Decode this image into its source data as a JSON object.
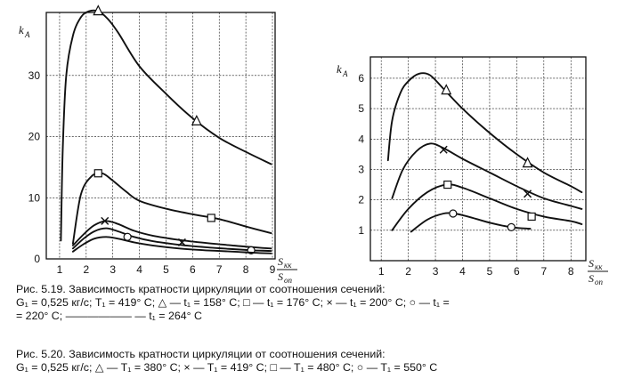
{
  "chart_data": [
    {
      "type": "line",
      "title": "",
      "ylabel": "k_A",
      "xlabel": "S_кк / S_оп",
      "xlim": [
        0.5,
        9.1
      ],
      "ylim": [
        0,
        40.3
      ],
      "xticks": [
        1,
        2,
        3,
        4,
        5,
        6,
        7,
        8,
        9
      ],
      "yticks": [
        0,
        10,
        20,
        30
      ],
      "series": [
        {
          "marker": "triangle",
          "x": [
            1.05,
            1.12,
            1.25,
            1.5,
            1.8,
            2.1,
            2.45,
            2.8,
            3.2,
            4.0,
            5.0,
            6.0,
            7.0,
            8.0,
            8.95
          ],
          "y": [
            3,
            18,
            30,
            36.5,
            39.5,
            40.5,
            40.5,
            39.3,
            37,
            31.5,
            27,
            23,
            19.8,
            17.5,
            15.5
          ],
          "markers": [
            [
              2.45,
              40.5
            ],
            [
              6.15,
              22.5
            ]
          ]
        },
        {
          "marker": "square",
          "x": [
            1.5,
            1.8,
            2.2,
            2.6,
            3.0,
            3.5,
            4.0,
            5.0,
            6.0,
            7.0,
            8.0,
            8.95
          ],
          "y": [
            2.5,
            10.5,
            13.5,
            14,
            12.8,
            11,
            9.5,
            8.2,
            7.3,
            6.5,
            5.3,
            4.2
          ],
          "markers": [
            [
              2.45,
              14
            ],
            [
              6.7,
              6.7
            ]
          ]
        },
        {
          "marker": "cross",
          "x": [
            1.5,
            1.9,
            2.3,
            2.75,
            3.2,
            3.8,
            4.5,
            5.5,
            6.5,
            7.5,
            8.3,
            8.95
          ],
          "y": [
            2.2,
            4,
            5.5,
            6.2,
            5.7,
            4.6,
            3.8,
            3.1,
            2.6,
            2.2,
            1.9,
            1.7
          ],
          "markers": [
            [
              2.7,
              6.2
            ],
            [
              5.6,
              2.7
            ]
          ]
        },
        {
          "marker": "circle",
          "x": [
            1.5,
            1.9,
            2.3,
            2.75,
            3.2,
            3.8,
            4.5,
            5.5,
            6.5,
            7.5,
            8.3,
            8.95
          ],
          "y": [
            1.7,
            3.3,
            4.5,
            5,
            4.5,
            3.6,
            2.9,
            2.3,
            1.9,
            1.6,
            1.4,
            1.3
          ],
          "markers": [
            [
              3.55,
              3.6
            ],
            [
              8.2,
              1.4
            ]
          ]
        },
        {
          "marker": "none",
          "x": [
            1.5,
            1.9,
            2.3,
            2.75,
            3.2,
            3.8,
            4.5,
            5.5,
            6.5,
            7.5,
            8.3,
            8.95
          ],
          "y": [
            1.2,
            2.4,
            3.3,
            3.6,
            3.3,
            2.7,
            2.2,
            1.7,
            1.4,
            1.2,
            1,
            0.9
          ],
          "markers": []
        }
      ]
    },
    {
      "type": "line",
      "title": "",
      "ylabel": "k_A",
      "xlabel": "S_кк / S_оп",
      "xlim": [
        0.6,
        8.55
      ],
      "ylim": [
        0,
        6.7
      ],
      "xticks": [
        1,
        2,
        3,
        4,
        5,
        6,
        7,
        8
      ],
      "yticks": [
        1,
        2,
        3,
        4,
        5,
        6
      ],
      "series": [
        {
          "marker": "triangle",
          "x": [
            1.25,
            1.4,
            1.7,
            2.0,
            2.4,
            2.8,
            3.3,
            4.0,
            5.0,
            6.0,
            7.0,
            8.0,
            8.4
          ],
          "y": [
            3.3,
            4.6,
            5.5,
            5.9,
            6.15,
            6.1,
            5.65,
            5.0,
            4.2,
            3.5,
            2.9,
            2.45,
            2.25
          ],
          "markers": [
            [
              3.4,
              5.6
            ],
            [
              6.4,
              3.2
            ]
          ]
        },
        {
          "marker": "cross",
          "x": [
            1.4,
            1.8,
            2.3,
            2.8,
            3.3,
            4.0,
            5.0,
            6.0,
            7.0,
            8.0,
            8.4
          ],
          "y": [
            2.05,
            3.0,
            3.6,
            3.85,
            3.7,
            3.35,
            2.9,
            2.45,
            2.05,
            1.8,
            1.7
          ],
          "markers": [
            [
              3.3,
              3.65
            ],
            [
              6.4,
              2.2
            ]
          ]
        },
        {
          "marker": "square",
          "x": [
            1.4,
            2.0,
            2.7,
            3.4,
            4.0,
            5.0,
            6.0,
            7.0,
            8.0,
            8.4
          ],
          "y": [
            1.0,
            1.7,
            2.25,
            2.5,
            2.4,
            2.05,
            1.7,
            1.45,
            1.3,
            1.2
          ],
          "markers": [
            [
              3.45,
              2.5
            ],
            [
              6.55,
              1.45
            ]
          ]
        },
        {
          "marker": "circle",
          "x": [
            2.1,
            2.7,
            3.3,
            3.7,
            4.2,
            5.0,
            5.8,
            6.5
          ],
          "y": [
            0.95,
            1.35,
            1.55,
            1.55,
            1.45,
            1.25,
            1.1,
            1.05
          ],
          "markers": [
            [
              3.65,
              1.55
            ],
            [
              5.8,
              1.1
            ]
          ]
        }
      ]
    }
  ],
  "figure_left": {
    "ylabel": "k",
    "ylabel_sub": "A",
    "xlabel_num": "S",
    "xlabel_num_sub": "кк",
    "xlabel_den": "S",
    "xlabel_den_sub": "оп"
  },
  "figure_right": {
    "ylabel": "k",
    "ylabel_sub": "A",
    "xlabel_num": "S",
    "xlabel_num_sub": "кк",
    "xlabel_den": "S",
    "xlabel_den_sub": "оп"
  },
  "captions": {
    "fig519_line1": "Рис. 5.19. Зависимость кратности циркуляции от соотношения сечений:",
    "fig519_line2": "G₁ = 0,525 кг/с; T₁ = 419° C; △ — t₁ = 158° C; □ — t₁ = 176° C; × — t₁ = 200° C; ○ — t₁ =",
    "fig519_line3": "= 220° C; —————— — t₁ = 264° C",
    "fig520_line1": "Рис. 5.20. Зависимость кратности циркуляции от соотношения сечений:",
    "fig520_line2": "G₁ = 0,525 кг/с; △ — T₁ = 380° C; × — T₁ = 419° C; □ — T₁ = 480° C; ○ — T₁ = 550° C"
  },
  "colors": {
    "ink": "#111111",
    "paper": "#ffffff"
  }
}
